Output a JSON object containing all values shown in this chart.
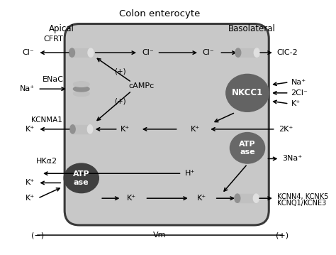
{
  "title": "Colon enterocyte",
  "apical_label": "Apical",
  "basolateral_label": "Basolateral",
  "cell_color": "#c8c8c8",
  "cell_border_color": "#3a3a3a",
  "dark_oval_color": "#4a4a4a",
  "medium_oval_color": "#686868",
  "cylinder_body_color": "#c0c0c0",
  "cylinder_light": "#e0e0e0",
  "cylinder_dark": "#909090",
  "text_color": "#000000",
  "vm_label": "Vm",
  "vm_minus": "(−)",
  "vm_plus": "(+)"
}
